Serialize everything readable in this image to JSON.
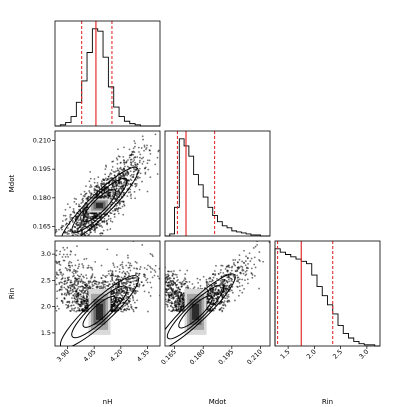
{
  "chart_data": {
    "type": "corner",
    "parameters": [
      "nH",
      "Mdot",
      "Rin"
    ],
    "markers": {
      "color": "#e31a1c",
      "nH": {
        "median": 4.06,
        "lower": 3.98,
        "upper": 4.15
      },
      "Mdot": {
        "median": 0.171,
        "lower": 0.1665,
        "upper": 0.186
      },
      "Rin": {
        "median": 1.75,
        "lower": 1.3,
        "upper": 2.35
      }
    },
    "panels": [
      {
        "id": "hist-nH",
        "kind": "histogram",
        "param": "nH",
        "xlim": [
          3.83,
          4.42
        ],
        "bin_edges": [
          3.83,
          3.86,
          3.89,
          3.92,
          3.95,
          3.98,
          4.01,
          4.04,
          4.07,
          4.1,
          4.13,
          4.16,
          4.19,
          4.22,
          4.25,
          4.28,
          4.31,
          4.34,
          4.37,
          4.4,
          4.42
        ],
        "counts": [
          0,
          1,
          3,
          8,
          20,
          38,
          62,
          82,
          80,
          58,
          33,
          16,
          8,
          4,
          2,
          1,
          0,
          0,
          0,
          0
        ]
      },
      {
        "id": "hist-Mdot",
        "kind": "histogram",
        "param": "Mdot",
        "xlim": [
          0.16,
          0.215
        ],
        "bin_edges": [
          0.16,
          0.1625,
          0.165,
          0.1675,
          0.17,
          0.1725,
          0.175,
          0.1775,
          0.18,
          0.1825,
          0.185,
          0.1875,
          0.19,
          0.1925,
          0.195,
          0.1975,
          0.2,
          0.2025,
          0.205,
          0.2075,
          0.21,
          0.2125,
          0.215
        ],
        "counts": [
          0,
          2,
          28,
          95,
          88,
          78,
          60,
          50,
          38,
          28,
          20,
          14,
          10,
          8,
          5,
          4,
          3,
          2,
          1,
          1,
          0,
          0
        ]
      },
      {
        "id": "hist-Rin",
        "kind": "histogram",
        "param": "Rin",
        "xlim": [
          1.25,
          3.25
        ],
        "bin_edges": [
          1.25,
          1.35,
          1.45,
          1.55,
          1.65,
          1.75,
          1.85,
          1.95,
          2.05,
          2.15,
          2.25,
          2.35,
          2.45,
          2.55,
          2.65,
          2.75,
          2.85,
          2.95,
          3.05,
          3.15,
          3.25
        ],
        "counts": [
          85,
          82,
          80,
          78,
          76,
          74,
          72,
          62,
          52,
          44,
          36,
          28,
          18,
          11,
          7,
          4,
          2,
          1,
          1,
          0
        ]
      },
      {
        "id": "joint-nH-Mdot",
        "kind": "2d",
        "x": "nH",
        "y": "Mdot",
        "xlim": [
          3.83,
          4.42
        ],
        "ylim": [
          0.16,
          0.215
        ],
        "corr": 0.85,
        "sx": 0.12,
        "sy": 0.013,
        "cx": 4.08,
        "cy": 0.176
      },
      {
        "id": "joint-nH-Rin",
        "kind": "2d",
        "x": "nH",
        "y": "Rin",
        "xlim": [
          3.83,
          4.42
        ],
        "ylim": [
          1.25,
          3.25
        ],
        "corr": 0.75,
        "sx": 0.12,
        "sy": 0.5,
        "cx": 4.08,
        "cy": 1.9
      },
      {
        "id": "joint-Mdot-Rin",
        "kind": "2d",
        "x": "Mdot",
        "y": "Rin",
        "xlim": [
          0.16,
          0.215
        ],
        "ylim": [
          1.25,
          3.25
        ],
        "corr": 0.9,
        "sx": 0.013,
        "sy": 0.5,
        "cx": 0.176,
        "cy": 1.9
      }
    ],
    "ticks": {
      "nH": [
        3.9,
        4.05,
        4.2,
        4.35
      ],
      "nH_labels": [
        "3.90",
        "4.05",
        "4.20",
        "4.35"
      ],
      "Mdot": [
        0.165,
        0.18,
        0.195,
        0.21
      ],
      "Mdot_labels": [
        "0.165",
        "0.180",
        "0.195",
        "0.210"
      ],
      "Rin": [
        1.5,
        2.0,
        2.5,
        3.0
      ],
      "Rin_labels": [
        "1.5",
        "2.0",
        "2.5",
        "3.0"
      ]
    },
    "axis_labels": {
      "x": [
        "nH",
        "Mdot",
        "Rin"
      ],
      "y": [
        "Mdot",
        "Rin"
      ]
    }
  }
}
